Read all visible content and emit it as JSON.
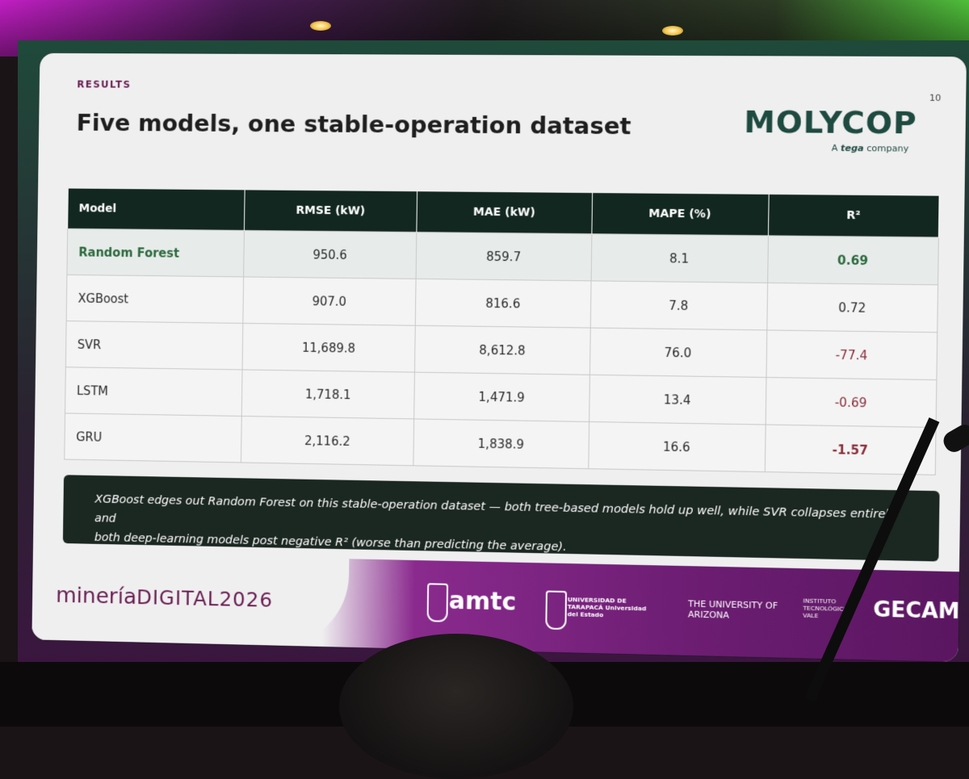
{
  "slide": {
    "section_label": "RESULTS",
    "page_number": "10",
    "title": "Five models, one stable-operation dataset",
    "logo": {
      "brand": "MOLYCOP",
      "tagline_prefix": "A",
      "tagline_brand": "tega",
      "tagline_suffix": "company"
    }
  },
  "table": {
    "headers": [
      "Model",
      "RMSE (kW)",
      "MAE (kW)",
      "MAPE (%)",
      "R²"
    ],
    "rows": [
      {
        "model": "Random Forest",
        "rmse": "950.6",
        "mae": "859.7",
        "mape": "8.1",
        "r2": "0.69"
      },
      {
        "model": "XGBoost",
        "rmse": "907.0",
        "mae": "816.6",
        "mape": "7.8",
        "r2": "0.72"
      },
      {
        "model": "SVR",
        "rmse": "11,689.8",
        "mae": "8,612.8",
        "mape": "76.0",
        "r2": "-77.4"
      },
      {
        "model": "LSTM",
        "rmse": "1,718.1",
        "mae": "1,471.9",
        "mape": "13.4",
        "r2": "-0.69"
      },
      {
        "model": "GRU",
        "rmse": "2,116.2",
        "mae": "1,838.9",
        "mape": "16.6",
        "r2": "-1.57"
      }
    ]
  },
  "callout": {
    "line1": "XGBoost edges out Random Forest on this stable-operation dataset — both tree-based models hold up well, while SVR collapses entirely and",
    "line2": "both deep-learning models post negative R² (worse than predicting the average)."
  },
  "footer": {
    "event_part1": "minería",
    "event_part2": "DIGITAL2026",
    "sponsors": {
      "amtc": "amtc",
      "uta": "UNIVERSIDAD DE TARAPACÁ Universidad del Estado",
      "ua": "THE UNIVERSITY OF ARIZONA",
      "inst": "INSTITUTO TECNOLÓGICO VALE",
      "gec": "GECAMIN"
    }
  },
  "colors": {
    "accent_green": "#2d6a3e",
    "header_dark": "#12271f",
    "negative_red": "#8a2c3a",
    "brand_purple": "#6a1e52"
  }
}
